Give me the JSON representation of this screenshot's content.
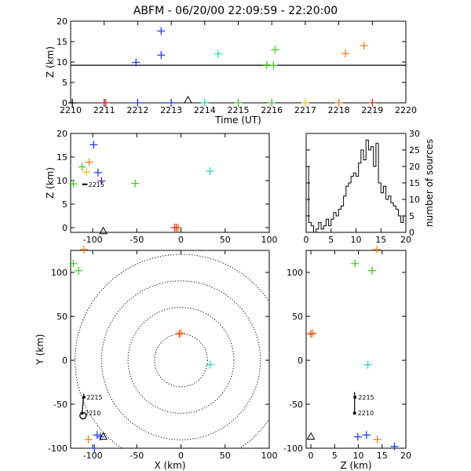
{
  "title": "ABFM - 06/20/00 22:09:59 - 22:20:00",
  "colors": {
    "blue": "#2040ff",
    "red": "#e8381c",
    "green": "#40d020",
    "cyan": "#20e0c0",
    "orange": "#f08020",
    "purple": "#6020a0",
    "yellow": "#f0c020",
    "lime": "#80e020",
    "black": "#000000"
  },
  "chart_data": [
    {
      "id": "time-height",
      "type": "scatter",
      "xlabel": "Time (UT)",
      "ylabel": "Z (km)",
      "xlim": [
        2210,
        2220
      ],
      "ylim": [
        0,
        20
      ],
      "xticks": [
        "2210",
        "2211",
        "2212",
        "2213",
        "2214",
        "2215",
        "2216",
        "2217",
        "2218",
        "2219",
        "2220"
      ],
      "yticks": [
        "0",
        "5",
        "10",
        "15",
        "20"
      ],
      "hline": 9.2,
      "triangle": {
        "x": 2213.5,
        "y": 0
      },
      "points": [
        {
          "x": 2210.05,
          "y": 0,
          "c": "black"
        },
        {
          "x": 2211.0,
          "y": 0,
          "c": "purple"
        },
        {
          "x": 2211.05,
          "y": 0,
          "c": "red"
        },
        {
          "x": 2211.95,
          "y": 9.9,
          "c": "blue"
        },
        {
          "x": 2212.0,
          "y": 0,
          "c": "blue"
        },
        {
          "x": 2212.7,
          "y": 17.6,
          "c": "blue"
        },
        {
          "x": 2212.7,
          "y": 11.7,
          "c": "blue"
        },
        {
          "x": 2213.0,
          "y": 0,
          "c": "blue"
        },
        {
          "x": 2214.0,
          "y": 0,
          "c": "cyan"
        },
        {
          "x": 2214.4,
          "y": 12.0,
          "c": "cyan"
        },
        {
          "x": 2215.0,
          "y": 0,
          "c": "green"
        },
        {
          "x": 2215.85,
          "y": 9.3,
          "c": "green"
        },
        {
          "x": 2216.05,
          "y": 9.2,
          "c": "green"
        },
        {
          "x": 2216.1,
          "y": 13.0,
          "c": "green"
        },
        {
          "x": 2216.0,
          "y": 0,
          "c": "green"
        },
        {
          "x": 2217.0,
          "y": 0,
          "c": "yellow"
        },
        {
          "x": 2218.0,
          "y": 0,
          "c": "orange"
        },
        {
          "x": 2218.2,
          "y": 12.1,
          "c": "orange"
        },
        {
          "x": 2218.75,
          "y": 14.0,
          "c": "orange"
        },
        {
          "x": 2219.0,
          "y": 0,
          "c": "red"
        }
      ]
    },
    {
      "id": "x-height",
      "type": "scatter",
      "xlabel": "",
      "ylabel": "Z (km)",
      "xlim": [
        -125,
        100
      ],
      "ylim": [
        -1,
        20
      ],
      "xticks": [
        "-100",
        "-50",
        "0",
        "50",
        "100"
      ],
      "yticks": [
        "0",
        "5",
        "10",
        "15",
        "20"
      ],
      "triangle": {
        "x": -88,
        "y": -0.8
      },
      "station_label": "2215",
      "points": [
        {
          "x": -122,
          "y": 9.3,
          "c": "green"
        },
        {
          "x": -112,
          "y": 12.9,
          "c": "green"
        },
        {
          "x": -107,
          "y": 11.8,
          "c": "yellow"
        },
        {
          "x": -104,
          "y": 13.9,
          "c": "orange"
        },
        {
          "x": -99,
          "y": 17.6,
          "c": "blue"
        },
        {
          "x": -94,
          "y": 11.7,
          "c": "blue"
        },
        {
          "x": -90,
          "y": 9.9,
          "c": "purple"
        },
        {
          "x": -52,
          "y": 9.4,
          "c": "green"
        },
        {
          "x": 33,
          "y": 12.0,
          "c": "cyan"
        },
        {
          "x": -5,
          "y": 0,
          "c": "red"
        },
        {
          "x": -3,
          "y": 0,
          "c": "orange"
        },
        {
          "x": -7,
          "y": 0,
          "c": "red"
        }
      ]
    },
    {
      "id": "histogram",
      "type": "bar",
      "ylabel": "number of sources",
      "xlim": [
        0,
        20
      ],
      "ylim": [
        0,
        30
      ],
      "xticks": [
        "0",
        "5",
        "10",
        "15",
        "20"
      ],
      "yticks": [
        "0",
        "5",
        "10",
        "15",
        "20",
        "25",
        "30"
      ],
      "bin_width": 0.5,
      "values": [
        20,
        3,
        2,
        0,
        1,
        3,
        1,
        2,
        4,
        2,
        4,
        6,
        5,
        7,
        8,
        11,
        14,
        15,
        17,
        18,
        17,
        21,
        25,
        22,
        28,
        25,
        26,
        20,
        27,
        15,
        12,
        14,
        10,
        11,
        9,
        8,
        7,
        5,
        3,
        5
      ]
    },
    {
      "id": "plan-view",
      "type": "scatter",
      "xlabel": "X (km)",
      "ylabel": "Y (km)",
      "xlim": [
        -125,
        100
      ],
      "ylim": [
        -100,
        125
      ],
      "xticks": [
        "-100",
        "-50",
        "0",
        "50",
        "100"
      ],
      "yticks": [
        "-100",
        "-50",
        "0",
        "50",
        "100"
      ],
      "range_rings_km": [
        30,
        60,
        90,
        120
      ],
      "triangle": {
        "x": -88,
        "y": -87
      },
      "circle": {
        "x": -111,
        "y": -63
      },
      "station_labels": [
        {
          "text": "2215",
          "x": -107,
          "y": -42
        },
        {
          "text": "2210",
          "x": -109,
          "y": -60
        }
      ],
      "points": [
        {
          "x": -122,
          "y": 110,
          "c": "green"
        },
        {
          "x": -116,
          "y": 102,
          "c": "green"
        },
        {
          "x": -110,
          "y": 126,
          "c": "orange"
        },
        {
          "x": -2,
          "y": 30,
          "c": "red"
        },
        {
          "x": 0,
          "y": 31,
          "c": "orange"
        },
        {
          "x": 33,
          "y": -5,
          "c": "cyan"
        },
        {
          "x": -105,
          "y": -90,
          "c": "orange"
        },
        {
          "x": -95,
          "y": -85,
          "c": "blue"
        },
        {
          "x": -91,
          "y": -87,
          "c": "blue"
        },
        {
          "x": -98,
          "y": -100,
          "c": "blue"
        }
      ]
    },
    {
      "id": "z-y",
      "type": "scatter",
      "xlabel": "Z (km)",
      "ylabel": "",
      "xlim": [
        -1,
        20
      ],
      "ylim": [
        -100,
        125
      ],
      "xticks": [
        "0",
        "5",
        "10",
        "15",
        "20"
      ],
      "triangle": {
        "x": 0,
        "y": -87
      },
      "station_labels": [
        {
          "text": "2215",
          "x": 9.3,
          "y": -42
        },
        {
          "text": "2210",
          "x": 9.2,
          "y": -60
        }
      ],
      "points": [
        {
          "x": 9.3,
          "y": 110,
          "c": "green"
        },
        {
          "x": 12.9,
          "y": 102,
          "c": "green"
        },
        {
          "x": 13.9,
          "y": 126,
          "c": "orange"
        },
        {
          "x": 0,
          "y": 30,
          "c": "red"
        },
        {
          "x": 0.4,
          "y": 31,
          "c": "orange"
        },
        {
          "x": 12.0,
          "y": -5,
          "c": "cyan"
        },
        {
          "x": 9.9,
          "y": -87,
          "c": "blue"
        },
        {
          "x": 11.7,
          "y": -85,
          "c": "blue"
        },
        {
          "x": 14.0,
          "y": -90,
          "c": "orange"
        },
        {
          "x": 17.6,
          "y": -98,
          "c": "blue"
        }
      ]
    }
  ]
}
